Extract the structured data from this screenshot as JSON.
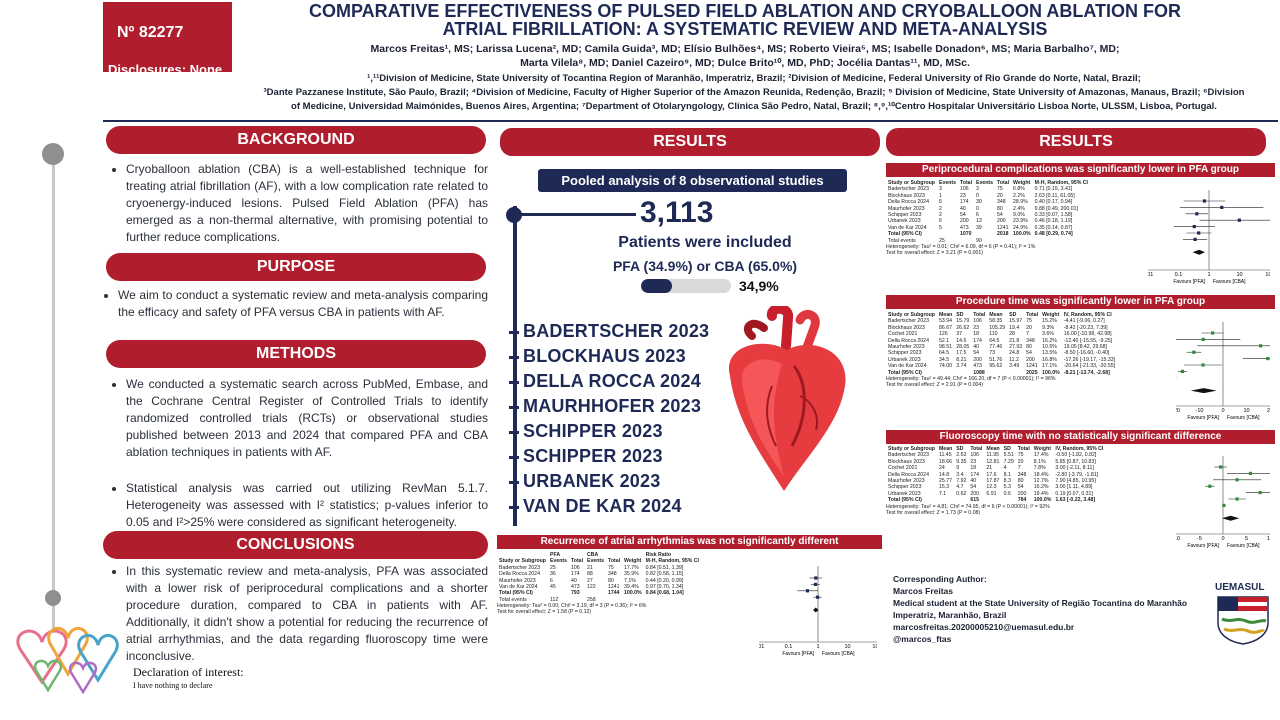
{
  "header": {
    "poster_number": "Nº 82277",
    "disclosures": "Disclosures: None",
    "title_line1": "COMPARATIVE EFFECTIVENESS OF PULSED FIELD ABLATION AND CRYOBALLOON ABLATION FOR",
    "title_line2": "ATRIAL FIBRILLATION: A SYSTEMATIC REVIEW AND META-ANALYSIS",
    "authors_line1": "Marcos Freitas¹, MS; Larissa Lucena², MD; Camila Guida³, MD; Elísio Bulhões⁴, MS; Roberto Vieira⁵, MS; Isabelle Donadon⁶, MS; Maria Barbalho⁷, MD;",
    "authors_line2": "Marta Vilela⁸, MD; Daniel Cazeiro⁹, MD; Dulce Brito¹⁰, MD, PhD; Jocélia Dantas¹¹, MD, MSc.",
    "affil_line1": "¹,¹¹Division of Medicine, State University of Tocantina Region of Maranhão, Imperatriz, Brazil; ²Division of Medicine, Federal University of Rio Grande do Norte, Natal, Brazil;",
    "affil_line2": "³Dante Pazzanese Institute, São Paulo, Brazil; ⁴Division of Medicine, Faculty of Higher Superior of the Amazon Reunida, Redenção, Brazil; ⁵ Division of Medicine, State University of Amazonas, Manaus, Brazil; ⁶Division",
    "affil_line3": "of Medicine, Universidad Maimónides, Buenos Aires, Argentina; ⁷Department of Otolaryngology, Clínica São Pedro, Natal, Brazil; ⁸,⁹,¹⁰Centro Hospitalar Universitário Lisboa Norte, ULSSM, Lisboa, Portugal."
  },
  "background": {
    "heading": "BACKGROUND",
    "text": "Cryoballoon ablation (CBA) is a well-established technique for treating atrial fibrillation (AF), with a low complication rate related to cryoenergy-induced lesions. Pulsed Field Ablation (PFA) has emerged as a non-thermal alternative, with promising potential to further reduce complications."
  },
  "purpose": {
    "heading": "PURPOSE",
    "text": "We aim to conduct a systematic review and meta-analysis comparing the efficacy and safety of PFA versus CBA in patients with AF."
  },
  "methods": {
    "heading": "METHODS",
    "text1": "We conducted a systematic search across PubMed, Embase, and the Cochrane Central Register of Controlled Trials to identify randomized controlled trials (RCTs) or observational studies published between 2013 and 2024 that compared PFA and CBA ablation techniques in patients with AF.",
    "text2": "Statistical analysis was carried out utilizing RevMan 5.1.7. Heterogeneity was assessed with I² statistics; p-values inferior to 0.05 and I²>25% were considered as significant heterogeneity."
  },
  "conclusions": {
    "heading": "CONCLUSIONS",
    "text": "In this systematic review and meta-analysis, PFA was associated with a lower risk of periprocedural complications and a shorter procedure duration, compared to CBA in patients with AF. Additionally, it didn't show a potential for reducing the recurrence of atrial arrhythmias, and the data regarding fluoroscopy time were inconclusive."
  },
  "declaration": {
    "title": "Declaration of interest:",
    "text": "I have nothing to declare"
  },
  "results_mid": {
    "heading": "RESULTS",
    "pooled_label": "Pooled analysis of 8 observational studies",
    "count": "3,113",
    "included": "Patients were included",
    "split": "PFA (34.9%) or CBA (65.0%)",
    "pfa_fraction": 0.349,
    "pfa_pct_label": "34,9%",
    "studies": [
      "BADERTSCHER 2023",
      "BLOCKHAUS 2023",
      "DELLA ROCCA 2024",
      "MAURHHOFER 2023",
      "SCHIPPER 2023",
      "SCHIPPER 2023",
      "URBANEK 2023",
      "VAN DE KAR 2024"
    ]
  },
  "recurrence": {
    "title": "Recurrence of atrial arrhythmias was not significantly different",
    "group1": "PFA",
    "group2": "CBA",
    "col_headers": [
      "Study or Subgroup",
      "Events",
      "Total",
      "Events",
      "Total",
      "Weight",
      "M-H, Random, 95% CI"
    ],
    "effect_header": "Risk Ratio",
    "rows": [
      [
        "Badertscher 2023",
        "25",
        "106",
        "21",
        "75",
        "17.7%",
        "0.84 [0.51, 1.39]"
      ],
      [
        "Della Rocca 2024",
        "36",
        "174",
        "88",
        "348",
        "35.9%",
        "0.82 [0.58, 1.15]"
      ],
      [
        "Maurhofer 2023",
        "6",
        "40",
        "27",
        "80",
        "7.1%",
        "0.44 [0.20, 0.99]"
      ],
      [
        "Van de Kar 2024",
        "45",
        "473",
        "122",
        "1241",
        "39.4%",
        "0.97 [0.70, 1.34]"
      ]
    ],
    "total_row": [
      "Total (95% CI)",
      "",
      "793",
      "",
      "1744",
      "100.0%",
      "0.84 [0.68, 1.04]"
    ],
    "total_events": [
      "Total events",
      "112",
      "",
      "258"
    ],
    "heterogeneity": "Heterogeneity: Tau² = 0.00; Chi² = 3.19, df = 3 (P = 0.36); I² = 6%",
    "overall": "Test for overall effect: Z = 1.58 (P = 0.12)",
    "axis_ticks": [
      "0.01",
      "0.1",
      "1",
      "10",
      "100"
    ],
    "favours_left": "Favours [PFA]",
    "favours_right": "Favours [CBA]"
  },
  "results_right": {
    "heading": "RESULTS",
    "periprocedural": {
      "title": "Periprocedural complications was significantly lower in PFA group",
      "col_headers": [
        "Study or Subgroup",
        "Events",
        "Total",
        "Events",
        "Total",
        "Weight",
        "M-H, Random, 95% CI"
      ],
      "rows": [
        [
          "Badertscher 2023",
          "3",
          "106",
          "3",
          "75",
          "6.8%",
          "0.71 [0.15, 3.41]"
        ],
        [
          "Blockhaus 2023",
          "1",
          "23",
          "0",
          "20",
          "2.2%",
          "2.63 [0.11, 61.05]"
        ],
        [
          "Della Rocca 2024",
          "6",
          "174",
          "30",
          "348",
          "28.9%",
          "0.40 [0.17, 0.94]"
        ],
        [
          "Maurhofer 2023",
          "2",
          "40",
          "0",
          "80",
          "2.4%",
          "9.88 [0.49, 200.01]"
        ],
        [
          "Schipper 2023",
          "2",
          "54",
          "6",
          "54",
          "9.0%",
          "0.33 [0.07, 1.58]"
        ],
        [
          "Urbanek 2023",
          "6",
          "200",
          "13",
          "200",
          "23.9%",
          "0.46 [0.18, 1.19]"
        ],
        [
          "Van de Kar 2024",
          "5",
          "473",
          "39",
          "1241",
          "24.9%",
          "0.35 [0.14, 0.87]"
        ]
      ],
      "total_row": [
        "Total (95% CI)",
        "",
        "1070",
        "",
        "2018",
        "100.0%",
        "0.48 [0.29, 0.74]"
      ],
      "total_events": [
        "Total events",
        "25",
        "",
        "90"
      ],
      "heterogeneity": "Heterogeneity: Tau² = 0.01; Chi² = 6.09, df = 6 (P = 0.41); I² = 1%",
      "overall": "Test for overall effect: Z = 3.21 (P = 0.001)",
      "axis_ticks": [
        "0.01",
        "0.1",
        "1",
        "10",
        "100"
      ],
      "favours_left": "Favours [PFA]",
      "favours_right": "Favours [CBA]"
    },
    "procedure": {
      "title": "Procedure time was significantly lower in PFA group",
      "col_headers": [
        "Study or Subgroup",
        "Mean",
        "SD",
        "Total",
        "Mean",
        "SD",
        "Total",
        "Weight",
        "IV, Random, 95% CI"
      ],
      "rows": [
        [
          "Badertscher 2023",
          "53.94",
          "15.79",
          "106",
          "58.35",
          "15.97",
          "75",
          "15.2%",
          "-4.41 [-9.06, 0.27]"
        ],
        [
          "Blockhaus 2023",
          "86.67",
          "26.62",
          "23",
          "105.29",
          "19.4",
          "20",
          "9.3%",
          "-8.42 [-20.23, 7.39]"
        ],
        [
          "Cochet 2021",
          "126",
          "37",
          "18",
          "110",
          "28",
          "7",
          "3.6%",
          "16.00 [-10.98, 42.98]"
        ],
        [
          "Della Rocca 2024",
          "52.1",
          "14.6",
          "174",
          "64.5",
          "21.8",
          "348",
          "16.2%",
          "-12.40 [-15.55, -9.25]"
        ],
        [
          "Maurhofer 2023",
          "98.51",
          "28.05",
          "40",
          "77.46",
          "27.93",
          "80",
          "10.5%",
          "19.05 [8.42, 29.68]"
        ],
        [
          "Schipper 2023",
          "64.5",
          "17.5",
          "54",
          "73",
          "24.8",
          "54",
          "13.5%",
          "-8.50 [-16.60, -0.40]"
        ],
        [
          "Urbanek 2023",
          "34.5",
          "8.21",
          "200",
          "51.76",
          "11.2",
          "200",
          "16.8%",
          "-17.26 [-19.17, -15.33]"
        ],
        [
          "Van de Kar 2024",
          "74.00",
          "3.74",
          "473",
          "95.62",
          "3.49",
          "1241",
          "17.1%",
          "-20.64 [-21.33, -20.55]"
        ]
      ],
      "total_row": [
        "Total (95% CI)",
        "",
        "",
        "1088",
        "",
        "",
        "2025",
        "100.0%",
        "-8.21 [-13.74, -2.68]"
      ],
      "heterogeneity": "Heterogeneity: Tau² = 49.44; Chi² = 166.20, df = 7 (P < 0.00001); I² = 96%",
      "overall": "Test for overall effect: Z = 2.91 (P = 0.004)",
      "axis_ticks": [
        "-20",
        "-10",
        "0",
        "10",
        "20"
      ],
      "favours_left": "Favours [PFA]",
      "favours_right": "Favours [CBA]"
    },
    "fluoroscopy": {
      "title": "Fluoroscopy time with no statistically significant difference",
      "col_headers": [
        "Study or Subgroup",
        "Mean",
        "SD",
        "Total",
        "Mean",
        "SD",
        "Total",
        "Weight",
        "IV, Random, 95% CI"
      ],
      "rows": [
        [
          "Badertscher 2023",
          "11.45",
          "2.63",
          "106",
          "11.95",
          "5.51",
          "75",
          "17.4%",
          "-0.50 [-1.82, 0.82]"
        ],
        [
          "Blockhaus 2023",
          "18.66",
          "9.35",
          "23",
          "12.81",
          "7.29",
          "20",
          "8.1%",
          "5.85 [0.87, 10.83]"
        ],
        [
          "Cochet 2021",
          "24",
          "9",
          "18",
          "21",
          "4",
          "7",
          "7.8%",
          "3.00 [-2.11, 8.11]"
        ],
        [
          "Della Rocca 2024",
          "14.8",
          "3.4",
          "174",
          "17.6",
          "8.1",
          "348",
          "18.4%",
          "-2.80 [-3.79, -1.81]"
        ],
        [
          "Maurhofer 2023",
          "25.77",
          "7.92",
          "40",
          "17.87",
          "8.3",
          "80",
          "12.7%",
          "7.90 [4.85, 10.95]"
        ],
        [
          "Schipper 2023",
          "15.3",
          "4.7",
          "54",
          "12.3",
          "5.3",
          "54",
          "16.2%",
          "3.00 [1.11, 4.89]"
        ],
        [
          "Urbanek 2023",
          "7.1",
          "0.62",
          "200",
          "6.91",
          "0.6",
          "200",
          "19.4%",
          "0.19 [0.07, 0.31]"
        ]
      ],
      "total_row": [
        "Total (95% CI)",
        "",
        "",
        "615",
        "",
        "",
        "784",
        "100.0%",
        "1.63 [-0.22, 3.48]"
      ],
      "heterogeneity": "Heterogeneity: Tau² = 4.81; Chi² = 74.95, df = 6 (P < 0.00001); I² = 92%",
      "overall": "Test for overall effect: Z = 1.73 (P = 0.08)",
      "axis_ticks": [
        "-10",
        "-5",
        "0",
        "5",
        "10"
      ],
      "favours_left": "Favours [PFA]",
      "favours_right": "Favours [CBA]"
    }
  },
  "contact": {
    "label": "Corresponding Author:",
    "name": "Marcos Freitas",
    "line1": "Medical student at the State University of Região Tocantina do Maranhão",
    "line2": "Imperatriz, Maranhão, Brazil",
    "email": "marcosfreitas.20200005210@uemasul.edu.br",
    "handle": "@marcos_ftas"
  },
  "logo_text": "UEMASUL",
  "colors": {
    "accent_red": "#b01e2e",
    "navy": "#1e2a55"
  }
}
